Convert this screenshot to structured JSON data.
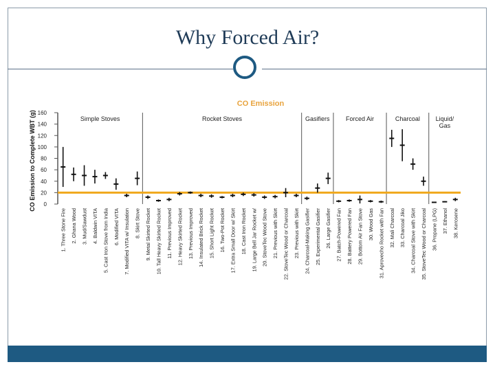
{
  "slide": {
    "title": "Why Forced Air?"
  },
  "colors": {
    "frame": "#8a9aa8",
    "accent": "#1e5a82",
    "chart_title": "#e8a33d",
    "reference_line": "#f0a81c",
    "marks": "#111111"
  },
  "chart_data": {
    "type": "scatter",
    "title": "CO Emission",
    "ylabel": "CO Emission to Complete WBT (g)",
    "xlabel": "",
    "ylim": [
      0,
      160
    ],
    "yticks": [
      0,
      20,
      40,
      60,
      80,
      100,
      120,
      140,
      160
    ],
    "grid": false,
    "reference_line": 20,
    "groups": [
      {
        "label": "Simple Stoves",
        "start": 1,
        "end": 8
      },
      {
        "label": "Rocket Stoves",
        "start": 9,
        "end": 23
      },
      {
        "label": "Gasifiers",
        "start": 24,
        "end": 26
      },
      {
        "label": "Forced Air",
        "start": 27,
        "end": 31
      },
      {
        "label": "Charcoal",
        "start": 32,
        "end": 35
      },
      {
        "label": "Liquid/ Gas",
        "start": 36,
        "end": 38
      }
    ],
    "categories": [
      "1. Three Stone Fire",
      "2. Ghana Wood",
      "3. Mud/Sawdust",
      "4. Baldwin VITA",
      "5. Cast Iron Stove from India",
      "6. Modified VITA",
      "7. Modified VITA w/ Insulation",
      "8. Skirt Stove",
      "9. Metal Skirted Rocket",
      "10. Tall Heavy Skirted Rocket",
      "11. Previous Improved",
      "12. Heavy Skirted Rocket",
      "13. Previous Improved",
      "14. Insulated Brick Rocket",
      "15. Short Light Rocket",
      "16. Two-Pot Rocket",
      "17. Extra Small Door w/ Skirt",
      "18. Cast Iron Rocket",
      "19. Large Bell Jar Rocket w/",
      "20. StoveTec Wood Stove",
      "21. Previous with Skirt",
      "22. StoveTec Wood or Charcoal",
      "23. Previous with Skirt",
      "24. Charcoal-Making Gasifier",
      "25. Experimental Gasifier",
      "26. Large Gasifier",
      "27. Batch-Powered Fan",
      "28. Battery Powered Fan",
      "29. Bottom Air Fan Stove",
      "30. Wood Gas",
      "31. Aprovecho Rocket with Fan",
      "32. Mali Charcoal",
      "33. Charcoal Jiko",
      "34. Charcoal Stove with Skirt",
      "35. StoveTec Wood or Charcoal",
      "36. Propane (LPG)",
      "37. Ethanol",
      "38. Kerosene"
    ],
    "values": [
      65,
      52,
      50,
      48,
      50,
      35,
      15,
      45,
      12,
      6,
      8,
      18,
      20,
      15,
      14,
      12,
      15,
      17,
      16,
      12,
      13,
      20,
      15,
      10,
      28,
      45,
      5,
      6,
      8,
      5,
      4,
      115,
      103,
      70,
      40,
      3,
      4,
      8
    ],
    "errors": [
      35,
      12,
      18,
      12,
      6,
      10,
      3,
      12,
      3,
      2,
      3,
      3,
      2,
      3,
      3,
      2,
      3,
      3,
      3,
      3,
      3,
      8,
      3,
      3,
      8,
      10,
      2,
      2,
      7,
      2,
      2,
      15,
      28,
      10,
      8,
      1,
      1,
      3
    ]
  }
}
